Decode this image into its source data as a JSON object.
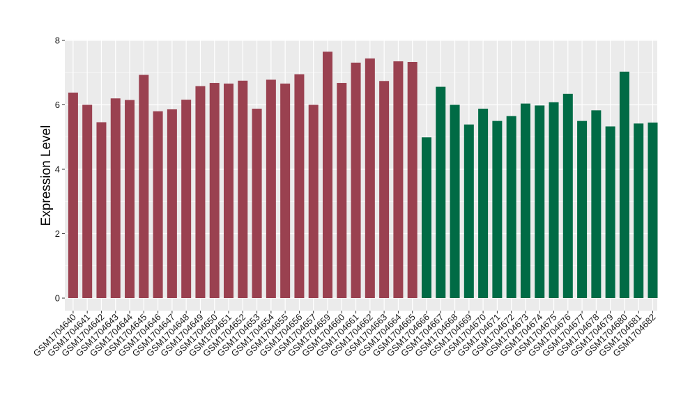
{
  "chart_data": {
    "type": "bar",
    "title": "",
    "xlabel": "",
    "ylabel": "Expression Level",
    "ylim": [
      0,
      8
    ],
    "yticks": [
      0,
      2,
      4,
      6,
      8
    ],
    "grid": true,
    "legend": "none",
    "background_color": "#ebebeb",
    "grid_color": "#ffffff",
    "categories": [
      "GSM1704640",
      "GSM1704641",
      "GSM1704642",
      "GSM1704643",
      "GSM1704644",
      "GSM1704645",
      "GSM1704646",
      "GSM1704647",
      "GSM1704648",
      "GSM1704649",
      "GSM1704650",
      "GSM1704651",
      "GSM1704652",
      "GSM1704653",
      "GSM1704654",
      "GSM1704655",
      "GSM1704656",
      "GSM1704657",
      "GSM1704659",
      "GSM1704660",
      "GSM1704661",
      "GSM1704662",
      "GSM1704663",
      "GSM1704664",
      "GSM1704665",
      "GSM1704666",
      "GSM1704667",
      "GSM1704668",
      "GSM1704669",
      "GSM1704670",
      "GSM1704671",
      "GSM1704672",
      "GSM1704673",
      "GSM1704674",
      "GSM1704675",
      "GSM1704676",
      "GSM1704677",
      "GSM1704678",
      "GSM1704679",
      "GSM1704680",
      "GSM1704681",
      "GSM1704682"
    ],
    "values": [
      6.38,
      6.0,
      5.46,
      6.2,
      6.15,
      6.93,
      5.8,
      5.86,
      6.16,
      6.58,
      6.68,
      6.66,
      6.75,
      5.88,
      6.78,
      6.66,
      6.95,
      6.0,
      7.65,
      6.68,
      7.31,
      7.44,
      6.74,
      7.35,
      7.33,
      4.99,
      6.56,
      6.0,
      5.39,
      5.88,
      5.5,
      5.65,
      6.04,
      5.98,
      6.08,
      6.34,
      5.5,
      5.83,
      5.33,
      7.03,
      5.42,
      5.45
    ],
    "bar_colors": [
      "#9a4150",
      "#9a4150",
      "#9a4150",
      "#9a4150",
      "#9a4150",
      "#9a4150",
      "#9a4150",
      "#9a4150",
      "#9a4150",
      "#9a4150",
      "#9a4150",
      "#9a4150",
      "#9a4150",
      "#9a4150",
      "#9a4150",
      "#9a4150",
      "#9a4150",
      "#9a4150",
      "#9a4150",
      "#9a4150",
      "#9a4150",
      "#9a4150",
      "#9a4150",
      "#9a4150",
      "#9a4150",
      "#006b45",
      "#006b45",
      "#006b45",
      "#006b45",
      "#006b45",
      "#006b45",
      "#006b45",
      "#006b45",
      "#006b45",
      "#006b45",
      "#006b45",
      "#006b45",
      "#006b45",
      "#006b45",
      "#006b45",
      "#006b45",
      "#006b45"
    ]
  }
}
